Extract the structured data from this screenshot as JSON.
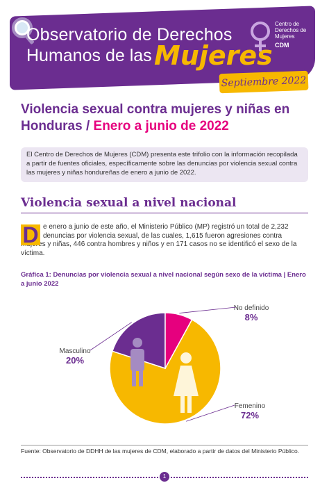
{
  "header": {
    "title_line1": "Observatorio de Derechos",
    "title_line2": "Humanos de las",
    "title_highlight": "Mujeres",
    "org_name": "Centro de Derechos de Mujeres",
    "org_acronym": "CDM",
    "date": "Septiembre 2022"
  },
  "main_title": {
    "part1": "Violencia sexual contra mujeres y niñas en Honduras / ",
    "part2": "Enero a junio de 2022"
  },
  "intro": "El Centro de Derechos de Mujeres (CDM) presenta este trifolio con la información recopilada a partir de fuentes oficiales, específicamente sobre las denuncias por violencia sexual contra las mujeres y niñas hondureñas de enero a junio de 2022.",
  "section": {
    "title": "Violencia sexual a nivel nacional",
    "drop_cap": "D",
    "body": "e enero a junio de este año, el Ministerio Público (MP) registró un total de 2,232 denuncias por violencia sexual, de las cuales, 1,615 fueron agresiones contra mujeres y niñas, 446 contra hombres y niños y en 171 casos no se identificó el sexo de la víctima."
  },
  "chart_caption": "Gráfica 1: Denuncias por violencia sexual a nivel nacional según sexo de la víctima | Enero a junio 2022",
  "chart_data": {
    "type": "pie",
    "title": "Gráfica 1: Denuncias por violencia sexual a nivel nacional según sexo de la víctima | Enero a junio 2022",
    "slices": [
      {
        "label": "Femenino",
        "value": 72,
        "display": "72%",
        "color": "#f7b800"
      },
      {
        "label": "Masculino",
        "value": 20,
        "display": "20%",
        "color": "#6b2d90"
      },
      {
        "label": "No definido",
        "value": 8,
        "display": "8%",
        "color": "#e6007e"
      }
    ]
  },
  "source": "Fuente: Observatorio de DDHH de las mujeres de CDM, elaborado a partir de datos del Ministerio Público.",
  "footer": {
    "page_number": "1"
  },
  "colors": {
    "purple": "#6b2d90",
    "yellow": "#f7b800",
    "magenta": "#e6007e"
  }
}
